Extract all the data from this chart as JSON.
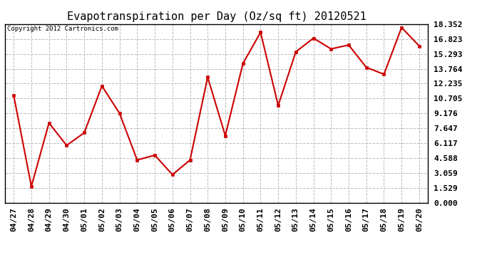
{
  "title": "Evapotranspiration per Day (Oz/sq ft) 20120521",
  "copyright": "Copyright 2012 Cartronics.com",
  "x_labels": [
    "04/27",
    "04/28",
    "04/29",
    "04/30",
    "05/01",
    "05/02",
    "05/03",
    "05/04",
    "05/05",
    "05/06",
    "05/07",
    "05/08",
    "05/09",
    "05/10",
    "05/11",
    "05/12",
    "05/13",
    "05/14",
    "05/15",
    "05/16",
    "05/17",
    "05/18",
    "05/19",
    "05/20"
  ],
  "y_values": [
    11.0,
    1.7,
    8.2,
    5.9,
    7.2,
    12.0,
    9.2,
    4.4,
    4.9,
    2.9,
    4.4,
    12.9,
    6.9,
    14.3,
    17.5,
    10.0,
    15.5,
    16.9,
    15.8,
    16.2,
    13.9,
    13.2,
    18.0,
    16.1
  ],
  "line_color": "#cc0000",
  "marker_color": "#cc0000",
  "bg_color": "#ffffff",
  "grid_color": "#bbbbbb",
  "y_ticks": [
    0.0,
    1.529,
    3.059,
    4.588,
    6.117,
    7.647,
    9.176,
    10.705,
    12.235,
    13.764,
    15.293,
    16.823,
    18.352
  ],
  "ylim": [
    0.0,
    18.352
  ],
  "title_fontsize": 11,
  "tick_fontsize": 8,
  "copyright_fontsize": 6.5
}
